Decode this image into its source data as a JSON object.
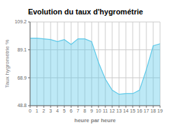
{
  "chart_data": {
    "type": "area",
    "title": "Evolution du taux d'hygrométrie",
    "xlabel": "heure par heure",
    "ylabel": "Taux hygrométrie %",
    "x": [
      0,
      1,
      2,
      3,
      4,
      5,
      6,
      7,
      8,
      9,
      10,
      11,
      12,
      13,
      14,
      15,
      16,
      17,
      18,
      19
    ],
    "values": [
      97.5,
      97.5,
      97.0,
      96.5,
      95.0,
      96.5,
      93.0,
      97.0,
      97.0,
      95.0,
      80.0,
      68.0,
      60.0,
      57.0,
      57.5,
      57.5,
      60.0,
      75.0,
      92.0,
      93.5
    ],
    "color": "#5bc8e8",
    "xlim": [
      0,
      19
    ],
    "xticks": [
      0,
      1,
      2,
      3,
      4,
      5,
      6,
      7,
      8,
      9,
      10,
      11,
      12,
      13,
      14,
      15,
      16,
      17,
      18,
      19
    ],
    "ylim": [
      48.8,
      109.2
    ],
    "yticks": [
      48.8,
      68.9,
      89.1,
      109.2
    ],
    "grid": true
  }
}
